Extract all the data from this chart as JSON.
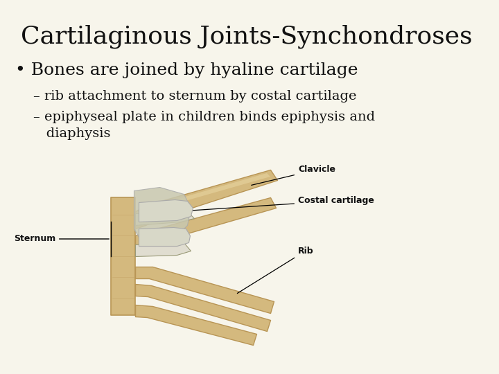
{
  "title": "Cartilaginous Joints-Synchondroses",
  "title_fontsize": 26,
  "background_color": "#f7f5eb",
  "text_color": "#111111",
  "bullet_text": "• Bones are joined by hyaline cartilage",
  "bullet_fontsize": 18,
  "sub1_text": "– rib attachment to sternum by costal cartilage",
  "sub2_text": "– epiphyseal plate in children binds epiphysis and\n   diaphysis",
  "sub_fontsize": 14,
  "bone_color": "#d4b97e",
  "bone_dark": "#b89555",
  "bone_light": "#e8d4a0",
  "cartilage_color": "#c8c8b0",
  "cartilage_light": "#e0ddd0",
  "label_fontsize": 9,
  "sternum_label": "Sternum",
  "clavicle_label": "Clavicle",
  "costal_label": "Costal cartilage",
  "rib_label": "Rib"
}
